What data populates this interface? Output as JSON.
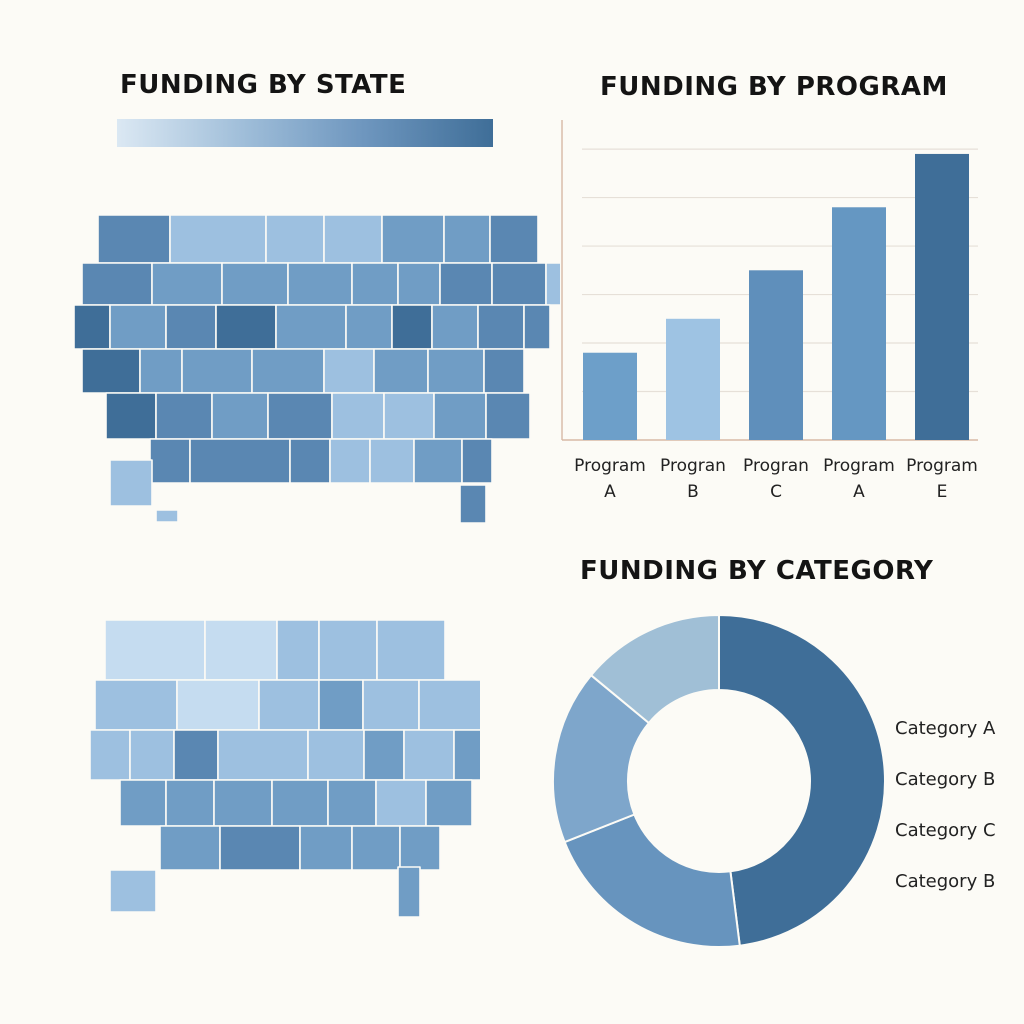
{
  "titles": {
    "state": "FUNDING BY STATE",
    "program": "FUNDING BY PROGRAM",
    "category": "FUNDING BY CATEGORY"
  },
  "colors": {
    "darkest": "#3f6e98",
    "dark": "#5a87b2",
    "mid": "#709dc5",
    "light": "#9dc0e0",
    "lightest": "#c5dcf0",
    "legend_start": "#dbe8f3",
    "legend_end": "#3f6e98"
  },
  "chart_data": [
    {
      "type": "bar",
      "title": "FUNDING BY PROGRAM",
      "categories": [
        [
          "Program",
          "A"
        ],
        [
          "Progran",
          "B"
        ],
        [
          "Progran",
          "C"
        ],
        [
          "Program",
          "A"
        ],
        [
          "Program",
          "E"
        ]
      ],
      "values": [
        18,
        25,
        35,
        48,
        59
      ],
      "ylim": [
        0,
        66
      ],
      "grid": true,
      "bar_colors": [
        "#6d9fc9",
        "#9ec3e3",
        "#5f8fbb",
        "#6597c2",
        "#3f6e98"
      ]
    },
    {
      "type": "pie",
      "title": "FUNDING BY CATEGORY",
      "donut": true,
      "legend": [
        "Category A",
        "Category B",
        "Category C",
        "Category B"
      ],
      "legend_placement": "right",
      "values": [
        48,
        21,
        17,
        14
      ],
      "slice_colors": [
        "#3f6e98",
        "#6794be",
        "#7ea6cb",
        "#a0bfd6"
      ]
    }
  ]
}
